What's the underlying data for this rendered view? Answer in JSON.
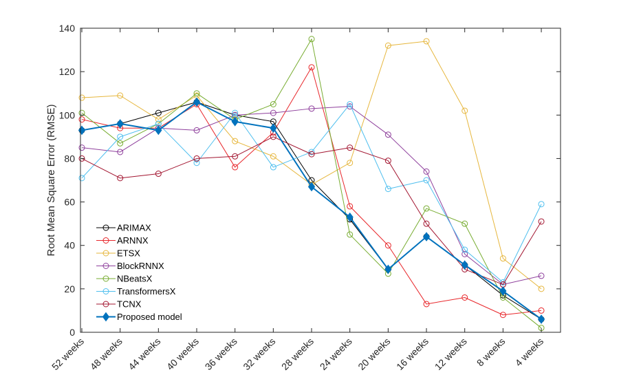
{
  "chart_data": {
    "type": "line",
    "title": "",
    "xlabel": "",
    "ylabel": "Root Mean Square Error (RMSE)",
    "categories": [
      "52 weeks",
      "48 weeks",
      "44 weeks",
      "40 weeks",
      "36 weeks",
      "32 weeks",
      "28 weeks",
      "24 weeks",
      "20 weeks",
      "16 weeks",
      "12 weeks",
      "8 weeks",
      "4 weeks"
    ],
    "ylim": [
      0,
      140
    ],
    "yticks": [
      0,
      20,
      40,
      60,
      80,
      100,
      120,
      140
    ],
    "grid": false,
    "legend_position": "bottom-left",
    "series": [
      {
        "name": "ARIMAX",
        "color": "#000000",
        "marker": "circle",
        "values": [
          93,
          96,
          101,
          106,
          100,
          97,
          70,
          52,
          29,
          44,
          31,
          17,
          6
        ]
      },
      {
        "name": "ARNNX",
        "color": "#e8262a",
        "marker": "circle",
        "values": [
          98,
          94,
          94,
          105,
          76,
          92,
          122,
          58,
          40,
          13,
          16,
          8,
          10
        ]
      },
      {
        "name": "ETSX",
        "color": "#e6b63c",
        "marker": "circle",
        "values": [
          108,
          109,
          98,
          109,
          88,
          81,
          68,
          78,
          132,
          134,
          102,
          34,
          20
        ]
      },
      {
        "name": "BlockRNNX",
        "color": "#8e3f9c",
        "marker": "circle",
        "values": [
          85,
          83,
          94,
          93,
          100,
          101,
          103,
          104,
          91,
          74,
          36,
          22,
          26
        ]
      },
      {
        "name": "NBeatsX",
        "color": "#77ac30",
        "marker": "circle",
        "values": [
          101,
          87,
          96,
          110,
          98,
          105,
          135,
          45,
          27,
          57,
          50,
          16,
          2
        ]
      },
      {
        "name": "TransformersX",
        "color": "#4dbeee",
        "marker": "circle",
        "values": [
          71,
          90,
          96,
          78,
          101,
          76,
          83,
          105,
          66,
          70,
          38,
          23,
          59
        ]
      },
      {
        "name": "TCNX",
        "color": "#a2142f",
        "marker": "circle",
        "values": [
          80,
          71,
          73,
          80,
          81,
          90,
          82,
          85,
          79,
          50,
          29,
          22,
          51
        ]
      },
      {
        "name": "Proposed model",
        "color": "#0072bd",
        "marker": "diamond",
        "values": [
          93,
          96,
          93,
          106,
          97,
          94,
          67,
          53,
          29,
          44,
          31,
          19,
          6
        ]
      }
    ]
  }
}
